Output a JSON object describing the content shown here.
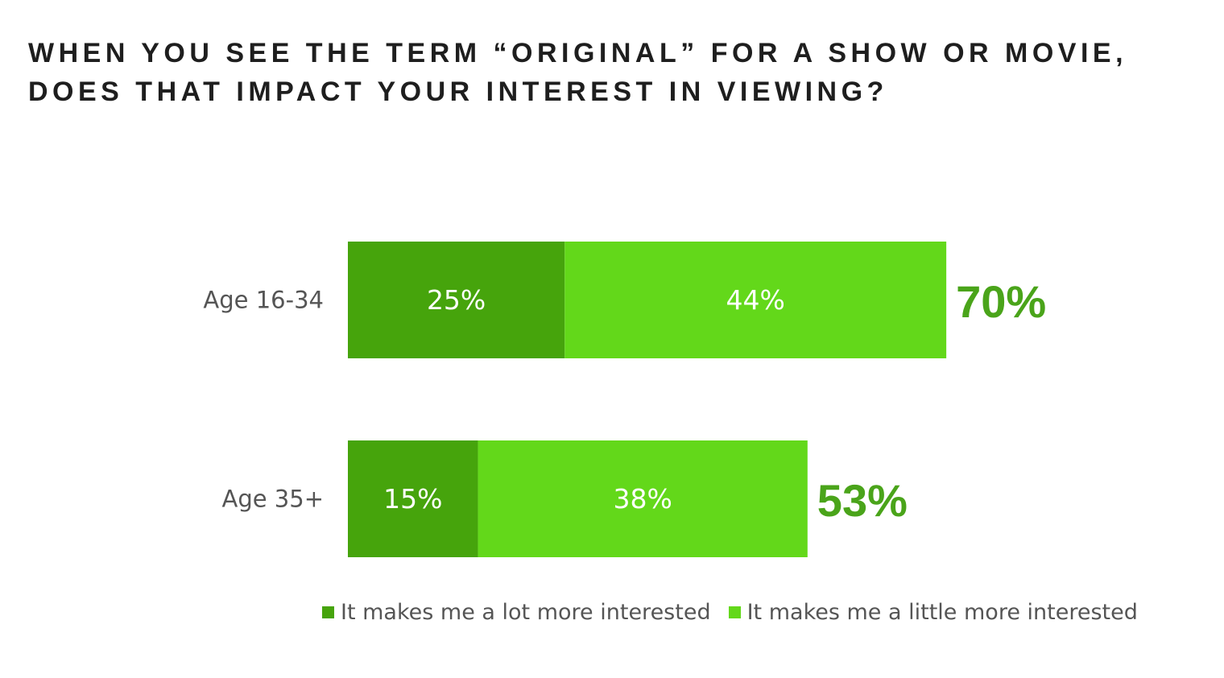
{
  "title_lines": [
    "WHEN YOU SEE THE TERM “ORIGINAL” FOR A SHOW OR MOVIE,",
    "DOES THAT IMPACT YOUR INTEREST IN VIEWING?"
  ],
  "colors": {
    "dark_green": "#46A40C",
    "light_green": "#63D81A",
    "total_text": "#4AA41A"
  },
  "chart_data": {
    "type": "bar",
    "orientation": "horizontal",
    "stacked": true,
    "categories": [
      "Age 16-34",
      "Age 35+"
    ],
    "series": [
      {
        "name": "It makes me a lot more interested",
        "values": [
          25,
          15
        ],
        "labels": [
          "25%",
          "15%"
        ]
      },
      {
        "name": "It makes me a little more interested",
        "values": [
          44,
          38
        ],
        "labels": [
          "44%",
          "38%"
        ]
      }
    ],
    "totals": [
      70,
      53
    ],
    "total_labels": [
      "70%",
      "53%"
    ],
    "legend_position": "bottom",
    "grid": false,
    "xlim": [
      0,
      100
    ]
  }
}
